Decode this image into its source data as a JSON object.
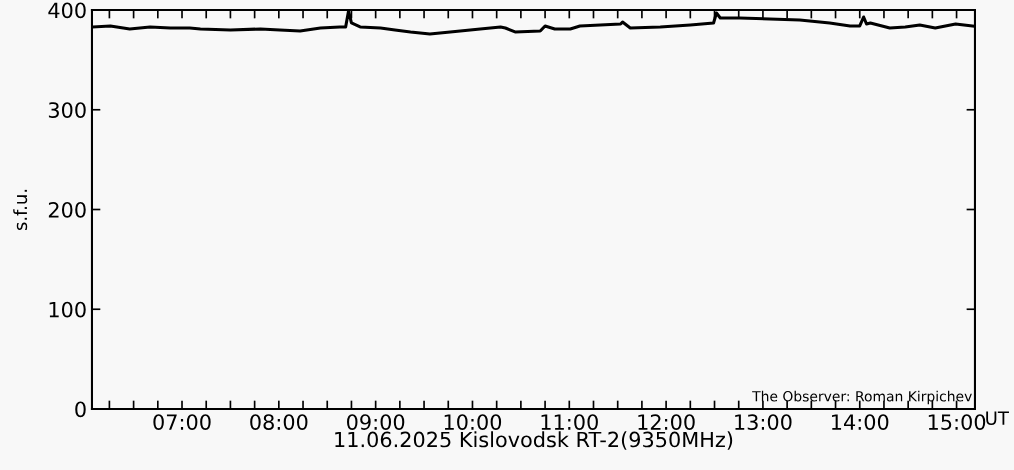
{
  "chart_data": {
    "type": "line",
    "xlabel": "11.06.2025 Kislovodsk RT-2(9350MHz)",
    "ylabel": "s.f.u.",
    "annotations": [
      "The Observer: Roman Kirpichev",
      "UT"
    ],
    "x": [
      6.08,
      6.26,
      6.46,
      6.67,
      6.88,
      7.08,
      7.19,
      7.5,
      7.81,
      8.01,
      8.22,
      8.43,
      8.63,
      8.69,
      8.72,
      8.75,
      8.84,
      9.05,
      9.2,
      9.36,
      9.56,
      9.77,
      10.08,
      10.29,
      10.34,
      10.44,
      10.7,
      10.75,
      10.85,
      11.01,
      11.11,
      11.32,
      11.53,
      11.55,
      11.63,
      11.94,
      12.25,
      12.49,
      12.52,
      12.56,
      12.76,
      13.07,
      13.38,
      13.69,
      13.9,
      14.0,
      14.04,
      14.07,
      14.11,
      14.31,
      14.47,
      14.62,
      14.78,
      14.99,
      15.17
    ],
    "series": [
      {
        "color": "#000000",
        "values": [
          383,
          384,
          381,
          383,
          382,
          382,
          381,
          380,
          381,
          380,
          379,
          382,
          383,
          383,
          399,
          387,
          383,
          382,
          380,
          378,
          376,
          378,
          381,
          383,
          382,
          378,
          379,
          384,
          381,
          381,
          384,
          385,
          386,
          388,
          382,
          383,
          385,
          387,
          397,
          392,
          392,
          391,
          390,
          387,
          384,
          384,
          393,
          386,
          387,
          382,
          383,
          385,
          382,
          386,
          384
        ]
      }
    ],
    "xlim": [
      6.07,
      15.19
    ],
    "xticks": [
      {
        "value": 6.25,
        "label": null
      },
      {
        "value": 6.5,
        "label": null
      },
      {
        "value": 6.75,
        "label": null
      },
      {
        "value": 7,
        "label": "07:00"
      },
      {
        "value": 7.25,
        "label": null
      },
      {
        "value": 7.5,
        "label": null
      },
      {
        "value": 7.75,
        "label": null
      },
      {
        "value": 8,
        "label": "08:00"
      },
      {
        "value": 8.25,
        "label": null
      },
      {
        "value": 8.5,
        "label": null
      },
      {
        "value": 8.75,
        "label": null
      },
      {
        "value": 9,
        "label": "09:00"
      },
      {
        "value": 9.25,
        "label": null
      },
      {
        "value": 9.5,
        "label": null
      },
      {
        "value": 9.75,
        "label": null
      },
      {
        "value": 10,
        "label": "10:00"
      },
      {
        "value": 10.25,
        "label": null
      },
      {
        "value": 10.5,
        "label": null
      },
      {
        "value": 10.75,
        "label": null
      },
      {
        "value": 11,
        "label": "11:00"
      },
      {
        "value": 11.25,
        "label": null
      },
      {
        "value": 11.5,
        "label": null
      },
      {
        "value": 11.75,
        "label": null
      },
      {
        "value": 12,
        "label": "12:00"
      },
      {
        "value": 12.25,
        "label": null
      },
      {
        "value": 12.5,
        "label": null
      },
      {
        "value": 12.75,
        "label": null
      },
      {
        "value": 13,
        "label": "13:00"
      },
      {
        "value": 13.25,
        "label": null
      },
      {
        "value": 13.5,
        "label": null
      },
      {
        "value": 13.75,
        "label": null
      },
      {
        "value": 14,
        "label": "14:00"
      },
      {
        "value": 14.25,
        "label": null
      },
      {
        "value": 14.5,
        "label": null
      },
      {
        "value": 14.75,
        "label": null
      },
      {
        "value": 15,
        "label": "15:00"
      }
    ],
    "ylim": [
      0,
      400
    ],
    "yticks": [
      0,
      100,
      200,
      300,
      400
    ],
    "grid": false,
    "legend": false,
    "marker": "none",
    "line_style": "solid"
  }
}
